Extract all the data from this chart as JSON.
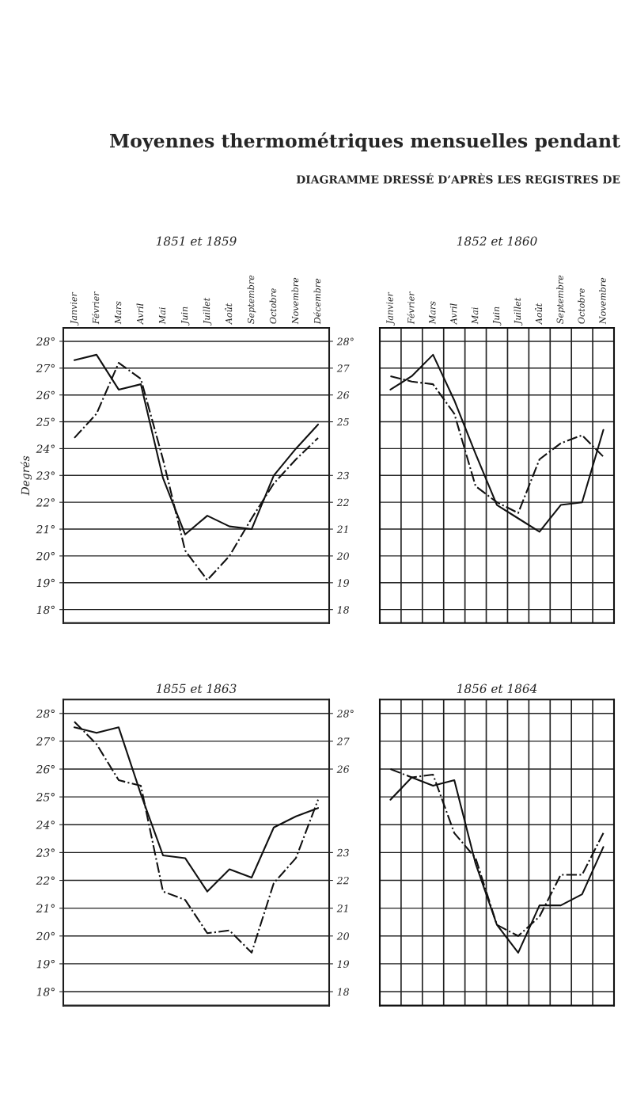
{
  "chart_data": [
    {
      "type": "line",
      "title": "1851 et 1859",
      "ylabel": "Degrés",
      "annotations": [
        "Moyennes thermométriques mensuelles pendant",
        "DIAGRAMME DRESSÉ D’APRÈS LES REGISTRES DE"
      ],
      "categories": [
        "Janvier",
        "Février",
        "Mars",
        "Avril",
        "Mai",
        "Juin",
        "Juillet",
        "Août",
        "Septembre",
        "Octobre",
        "Novembre",
        "Décembre"
      ],
      "series": [
        {
          "color": "#111111",
          "line_style": "solid",
          "values": [
            27.3,
            27.5,
            26.2,
            26.4,
            22.9,
            20.8,
            21.5,
            21.1,
            21.0,
            23.0,
            24.0,
            24.9
          ]
        },
        {
          "color": "#111111",
          "line_style": "dashed",
          "values": [
            24.4,
            25.3,
            27.2,
            26.6,
            23.6,
            20.2,
            19.1,
            20.0,
            21.4,
            22.7,
            23.6,
            24.4
          ]
        }
      ],
      "ylim": [
        17.5,
        28.5
      ],
      "yticks": [
        {
          "value": 28,
          "label": "28°"
        },
        {
          "value": 27,
          "label": "27°"
        },
        {
          "value": 26,
          "label": "26°"
        },
        {
          "value": 25,
          "label": "25°"
        },
        {
          "value": 24,
          "label": "24°"
        },
        {
          "value": 23,
          "label": "23°"
        },
        {
          "value": 22,
          "label": "22°"
        },
        {
          "value": 21,
          "label": "21°"
        },
        {
          "value": 20,
          "label": "20°"
        },
        {
          "value": 19,
          "label": "19°"
        },
        {
          "value": 18,
          "label": "18°"
        }
      ],
      "y2lim": [
        17.5,
        28.5
      ],
      "y2ticks": [
        {
          "value": 28,
          "label": "28°"
        },
        27,
        26,
        25,
        23,
        22,
        21,
        20,
        19,
        18
      ],
      "grid": true
    },
    {
      "type": "line",
      "title": "1852 et 1860",
      "categories": [
        "Janvier",
        "Février",
        "Mars",
        "Avril",
        "Mai",
        "Juin",
        "Juillet",
        "Août",
        "Septembre",
        "Octobre",
        "Novembre"
      ],
      "series": [
        {
          "color": "#111111",
          "line_style": "solid",
          "values": [
            26.2,
            26.7,
            27.5,
            25.8,
            23.8,
            21.9,
            21.4,
            20.9,
            21.9,
            22.0,
            24.7
          ]
        },
        {
          "color": "#111111",
          "line_style": "dashed",
          "values": [
            26.7,
            26.5,
            26.4,
            25.3,
            22.6,
            22.0,
            21.6,
            23.6,
            24.2,
            24.5,
            23.7
          ]
        }
      ],
      "ylim": [
        17.5,
        28.5
      ],
      "tick_labels": "x",
      "grid": true
    },
    {
      "type": "line",
      "title": "1855 et 1863",
      "categories": [
        null,
        null,
        null,
        null,
        null,
        null,
        null,
        null,
        null,
        null,
        null,
        null
      ],
      "series": [
        {
          "color": "#111111",
          "line_style": "solid",
          "values": [
            27.5,
            27.3,
            27.5,
            25.1,
            22.9,
            22.8,
            21.6,
            22.4,
            22.1,
            23.9,
            24.3,
            24.6
          ]
        },
        {
          "color": "#111111",
          "line_style": "dashed",
          "values": [
            27.7,
            26.9,
            25.6,
            25.4,
            21.6,
            21.3,
            20.1,
            20.2,
            19.4,
            21.9,
            22.8,
            24.9
          ]
        }
      ],
      "ylim": [
        17.5,
        28.5
      ],
      "yticks": [
        {
          "value": 28,
          "label": "28°"
        },
        {
          "value": 27,
          "label": "27°"
        },
        {
          "value": 26,
          "label": "26°"
        },
        {
          "value": 25,
          "label": "25°"
        },
        {
          "value": 24,
          "label": "24°"
        },
        {
          "value": 23,
          "label": "23°"
        },
        {
          "value": 22,
          "label": "22°"
        },
        {
          "value": 21,
          "label": "21°"
        },
        {
          "value": 20,
          "label": "20°"
        },
        {
          "value": 19,
          "label": "19°"
        },
        {
          "value": 18,
          "label": "18°"
        }
      ],
      "y2lim": [
        17.5,
        28.5
      ],
      "y2ticks": [
        {
          "value": 28,
          "label": "28°"
        },
        27,
        26,
        23,
        22,
        21,
        20,
        19,
        18
      ],
      "tick_labels": "y",
      "grid": true
    },
    {
      "type": "line",
      "title": "1856 et 1864",
      "categories": [
        null,
        null,
        null,
        null,
        null,
        null,
        null,
        null,
        null,
        null,
        null
      ],
      "series": [
        {
          "color": "#111111",
          "line_style": "solid",
          "values": [
            24.9,
            25.7,
            25.4,
            25.6,
            22.6,
            20.4,
            19.4,
            21.1,
            21.1,
            21.5,
            23.2
          ]
        },
        {
          "color": "#111111",
          "line_style": "dashed",
          "values": [
            26.0,
            25.7,
            25.8,
            23.7,
            22.8,
            20.4,
            20.0,
            20.7,
            22.2,
            22.2,
            23.7
          ]
        }
      ],
      "ylim": [
        17.5,
        28.5
      ],
      "tick_labels": false,
      "grid": true
    }
  ]
}
